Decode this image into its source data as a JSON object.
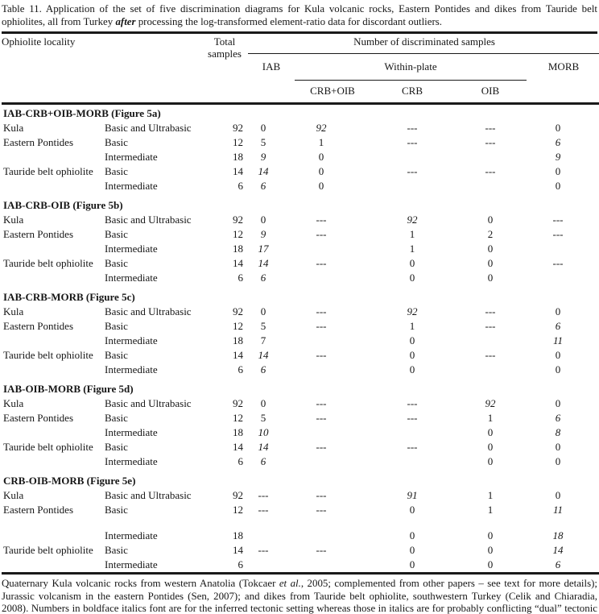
{
  "caption": {
    "part1": "Table 11. Application of the set of five discrimination diagrams for Kula volcanic rocks, Eastern Pontides and dikes from Tauride belt ophiolites, all from Turkey ",
    "emphasis": "after",
    "part2": " processing the log-transformed element-ratio data for discordant outliers."
  },
  "table": {
    "header": {
      "col_locality": "Ophiolite locality",
      "col_total": "Total samples",
      "group_discriminated": "Number of discriminated samples",
      "col_iab": "IAB",
      "group_within_plate": "Within-plate",
      "col_morb": "MORB",
      "col_crb_oib": "CRB+OIB",
      "col_crb": "CRB",
      "col_oib": "OIB"
    },
    "cell_styles_legend": {
      "bi": "boldface italics = inferred tectonic setting",
      "i": "italics = conflicting dual setting or unused/inapplicable diagram"
    },
    "sections": [
      {
        "title": "IAB-CRB+OIB-MORB (Figure 5a)",
        "rows": [
          {
            "loc": "Kula",
            "rock": "Basic and Ultrabasic",
            "cells": [
              {
                "v": "92"
              },
              {
                "v": "0"
              },
              {
                "v": "92",
                "s": "bi"
              },
              {
                "v": "---"
              },
              {
                "v": "---"
              },
              {
                "v": "0"
              }
            ]
          },
          {
            "loc": "Eastern Pontides",
            "rock": "Basic",
            "cells": [
              {
                "v": "12"
              },
              {
                "v": "5"
              },
              {
                "v": "1"
              },
              {
                "v": "---"
              },
              {
                "v": "---"
              },
              {
                "v": "6",
                "s": "i"
              }
            ]
          },
          {
            "loc": "",
            "rock": "Intermediate",
            "cells": [
              {
                "v": "18"
              },
              {
                "v": "9",
                "s": "bi"
              },
              {
                "v": "0"
              },
              {
                "v": ""
              },
              {
                "v": ""
              },
              {
                "v": "9",
                "s": "i"
              }
            ]
          },
          {
            "loc": "Tauride belt ophiolite",
            "rock": "Basic",
            "cells": [
              {
                "v": "14"
              },
              {
                "v": "14",
                "s": "bi"
              },
              {
                "v": "0"
              },
              {
                "v": "---"
              },
              {
                "v": "---"
              },
              {
                "v": "0"
              }
            ]
          },
          {
            "loc": "",
            "rock": "Intermediate",
            "cells": [
              {
                "v": "6"
              },
              {
                "v": "6",
                "s": "bi"
              },
              {
                "v": "0"
              },
              {
                "v": ""
              },
              {
                "v": ""
              },
              {
                "v": "0"
              }
            ]
          }
        ]
      },
      {
        "title": "IAB-CRB-OIB (Figure 5b)",
        "rows": [
          {
            "loc": "Kula",
            "rock": "Basic and Ultrabasic",
            "cells": [
              {
                "v": "92"
              },
              {
                "v": "0"
              },
              {
                "v": "---"
              },
              {
                "v": "92",
                "s": "bi"
              },
              {
                "v": "0"
              },
              {
                "v": "---"
              }
            ]
          },
          {
            "loc": "Eastern Pontides",
            "rock": "Basic",
            "cells": [
              {
                "v": "12"
              },
              {
                "v": "9",
                "s": "bi"
              },
              {
                "v": "---"
              },
              {
                "v": "1"
              },
              {
                "v": "2"
              },
              {
                "v": "---"
              }
            ]
          },
          {
            "loc": "",
            "rock": "Intermediate",
            "cells": [
              {
                "v": "18"
              },
              {
                "v": "17",
                "s": "bi"
              },
              {
                "v": ""
              },
              {
                "v": "1"
              },
              {
                "v": "0"
              },
              {
                "v": ""
              }
            ]
          },
          {
            "loc": "Tauride belt ophiolite",
            "rock": "Basic",
            "cells": [
              {
                "v": "14"
              },
              {
                "v": "14",
                "s": "bi"
              },
              {
                "v": "---"
              },
              {
                "v": "0"
              },
              {
                "v": "0"
              },
              {
                "v": "---"
              }
            ]
          },
          {
            "loc": "",
            "rock": "Intermediate",
            "cells": [
              {
                "v": "6"
              },
              {
                "v": "6",
                "s": "bi"
              },
              {
                "v": ""
              },
              {
                "v": "0"
              },
              {
                "v": "0"
              },
              {
                "v": ""
              }
            ]
          }
        ]
      },
      {
        "title": "IAB-CRB-MORB (Figure 5c)",
        "rows": [
          {
            "loc": "Kula",
            "rock": "Basic and Ultrabasic",
            "cells": [
              {
                "v": "92"
              },
              {
                "v": "0"
              },
              {
                "v": "---"
              },
              {
                "v": "92",
                "s": "bi"
              },
              {
                "v": "---"
              },
              {
                "v": "0"
              }
            ]
          },
          {
            "loc": "Eastern Pontides",
            "rock": "Basic",
            "cells": [
              {
                "v": "12"
              },
              {
                "v": "5"
              },
              {
                "v": "---"
              },
              {
                "v": "1"
              },
              {
                "v": "---"
              },
              {
                "v": "6",
                "s": "i"
              }
            ]
          },
          {
            "loc": "",
            "rock": "Intermediate",
            "cells": [
              {
                "v": "18"
              },
              {
                "v": "7"
              },
              {
                "v": ""
              },
              {
                "v": "0"
              },
              {
                "v": ""
              },
              {
                "v": "11",
                "s": "i"
              }
            ]
          },
          {
            "loc": "Tauride belt ophiolite",
            "rock": "Basic",
            "cells": [
              {
                "v": "14"
              },
              {
                "v": "14",
                "s": "bi"
              },
              {
                "v": "---"
              },
              {
                "v": "0"
              },
              {
                "v": "---"
              },
              {
                "v": "0"
              }
            ]
          },
          {
            "loc": "",
            "rock": "Intermediate",
            "cells": [
              {
                "v": "6"
              },
              {
                "v": "6",
                "s": "bi"
              },
              {
                "v": ""
              },
              {
                "v": "0"
              },
              {
                "v": ""
              },
              {
                "v": "0"
              }
            ]
          }
        ]
      },
      {
        "title": "IAB-OIB-MORB (Figure 5d)",
        "rows": [
          {
            "loc": "Kula",
            "rock": "Basic and Ultrabasic",
            "cells": [
              {
                "v": "92"
              },
              {
                "v": "0"
              },
              {
                "v": "---"
              },
              {
                "v": "---"
              },
              {
                "v": "92",
                "s": "bi"
              },
              {
                "v": "0"
              }
            ]
          },
          {
            "loc": "Eastern Pontides",
            "rock": "Basic",
            "cells": [
              {
                "v": "12"
              },
              {
                "v": "5"
              },
              {
                "v": "---"
              },
              {
                "v": "---"
              },
              {
                "v": "1"
              },
              {
                "v": "6",
                "s": "i"
              }
            ]
          },
          {
            "loc": "",
            "rock": "Intermediate",
            "cells": [
              {
                "v": "18"
              },
              {
                "v": "10",
                "s": "bi"
              },
              {
                "v": ""
              },
              {
                "v": ""
              },
              {
                "v": "0"
              },
              {
                "v": "8",
                "s": "i"
              }
            ]
          },
          {
            "loc": "Tauride belt ophiolite",
            "rock": "Basic",
            "cells": [
              {
                "v": "14"
              },
              {
                "v": "14",
                "s": "bi"
              },
              {
                "v": "---"
              },
              {
                "v": "---"
              },
              {
                "v": "0"
              },
              {
                "v": "0"
              }
            ]
          },
          {
            "loc": "",
            "rock": "Intermediate",
            "cells": [
              {
                "v": "6"
              },
              {
                "v": "6",
                "s": "bi"
              },
              {
                "v": ""
              },
              {
                "v": ""
              },
              {
                "v": "0"
              },
              {
                "v": "0"
              }
            ]
          }
        ]
      },
      {
        "title": "CRB-OIB-MORB (Figure 5e)",
        "rows": [
          {
            "loc": "Kula",
            "rock": "Basic and Ultrabasic",
            "cells": [
              {
                "v": "92"
              },
              {
                "v": "---"
              },
              {
                "v": "---"
              },
              {
                "v": "91",
                "s": "bi"
              },
              {
                "v": "1"
              },
              {
                "v": "0"
              }
            ]
          },
          {
            "loc": "Eastern Pontides",
            "rock": "Basic",
            "cells": [
              {
                "v": "12"
              },
              {
                "v": "---"
              },
              {
                "v": "---"
              },
              {
                "v": "0"
              },
              {
                "v": "1"
              },
              {
                "v": "11",
                "s": "i"
              }
            ]
          },
          {
            "spacer": true
          },
          {
            "loc": "",
            "rock": "Intermediate",
            "cells": [
              {
                "v": "18"
              },
              {
                "v": ""
              },
              {
                "v": ""
              },
              {
                "v": "0"
              },
              {
                "v": "0"
              },
              {
                "v": "18",
                "s": "i"
              }
            ]
          },
          {
            "loc": "Tauride belt ophiolite",
            "rock": "Basic",
            "cells": [
              {
                "v": "14"
              },
              {
                "v": "---"
              },
              {
                "v": "---"
              },
              {
                "v": "0"
              },
              {
                "v": "0"
              },
              {
                "v": "14",
                "s": "i"
              }
            ]
          },
          {
            "loc": "",
            "rock": "Intermediate",
            "cells": [
              {
                "v": "6"
              },
              {
                "v": ""
              },
              {
                "v": ""
              },
              {
                "v": "0"
              },
              {
                "v": "0"
              },
              {
                "v": "6",
                "s": "i"
              }
            ]
          }
        ]
      }
    ]
  },
  "footnote": {
    "part1": "Quaternary Kula volcanic rocks from western Anatolia (Tokcaer ",
    "emphasis": "et al.",
    "part2": ", 2005; complemented from other papers – see text for more details); Jurassic volcanism in the eastern Pontides (Sen, 2007); and dikes from Tauride belt ophiolite, southwestern Turkey (Celik and Chiaradia, 2008). Numbers in boldface italics font are for the inferred tectonic setting whereas those in italics are for probably conflicting “dual” tectonic setting, or for “unused” or “inapplicable” diagram."
  }
}
